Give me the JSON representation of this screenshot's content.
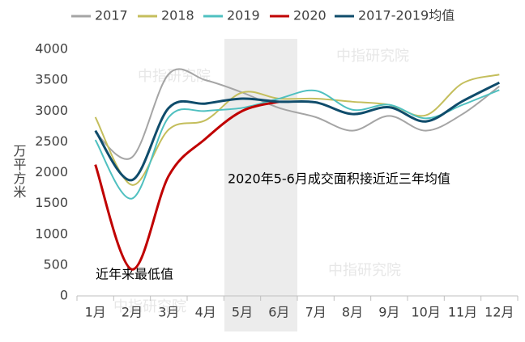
{
  "chart_data": {
    "type": "line",
    "categories": [
      "1月",
      "2月",
      "3月",
      "4月",
      "5月",
      "6月",
      "7月",
      "8月",
      "9月",
      "10月",
      "11月",
      "12月"
    ],
    "series": [
      {
        "name": "2017",
        "color": "#a5a5a5",
        "values": [
          2650,
          2250,
          3600,
          3500,
          3300,
          3050,
          2900,
          2680,
          2920,
          2680,
          2950,
          3400
        ]
      },
      {
        "name": "2018",
        "color": "#c4be5c",
        "values": [
          2900,
          1800,
          2700,
          2850,
          3300,
          3200,
          3200,
          3150,
          3100,
          2930,
          3450,
          3590
        ]
      },
      {
        "name": "2019",
        "color": "#4fc0c0",
        "values": [
          2530,
          1580,
          2900,
          3000,
          3050,
          3200,
          3330,
          3020,
          3100,
          2880,
          3100,
          3340
        ]
      },
      {
        "name": "2020",
        "color": "#c00000",
        "values": [
          2130,
          430,
          1950,
          2550,
          3000,
          3150,
          null,
          null,
          null,
          null,
          null,
          null
        ]
      },
      {
        "name": "2017-2019均值",
        "color": "#0f4c6b",
        "values": [
          2680,
          1880,
          3050,
          3120,
          3200,
          3150,
          3140,
          2950,
          3060,
          2830,
          3160,
          3460
        ]
      }
    ],
    "ylabel": "万平方米",
    "ylim": [
      0,
      4000
    ],
    "yticks": [
      0,
      500,
      1000,
      1500,
      2000,
      2500,
      3000,
      3500,
      4000
    ],
    "annotations": [
      "2020年5-6月成交面积接近近三年均值",
      "近年来最低值"
    ],
    "watermark": "中指研究院",
    "grid": false,
    "legend": "top"
  }
}
